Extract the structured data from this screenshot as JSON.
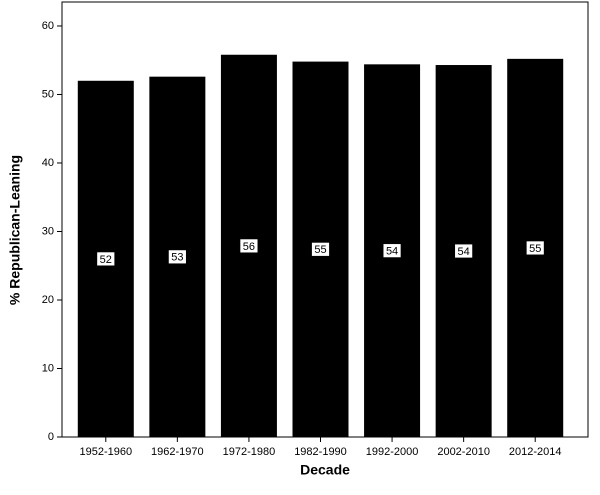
{
  "chart_data": {
    "type": "bar",
    "x_label": "Decade",
    "y_label": "% Republican-Leaning",
    "categories": [
      "1952-1960",
      "1962-1970",
      "1972-1980",
      "1982-1990",
      "1992-2000",
      "2002-2010",
      "2012-2014"
    ],
    "values": [
      52.0,
      52.6,
      55.8,
      54.8,
      54.4,
      54.3,
      55.2
    ],
    "value_labels": [
      "52",
      "53",
      "56",
      "55",
      "54",
      "54",
      "55"
    ],
    "color": "#000000",
    "ylim": [
      0,
      63.5
    ],
    "yticks": [
      0,
      10,
      20,
      30,
      40,
      50,
      60
    ]
  }
}
